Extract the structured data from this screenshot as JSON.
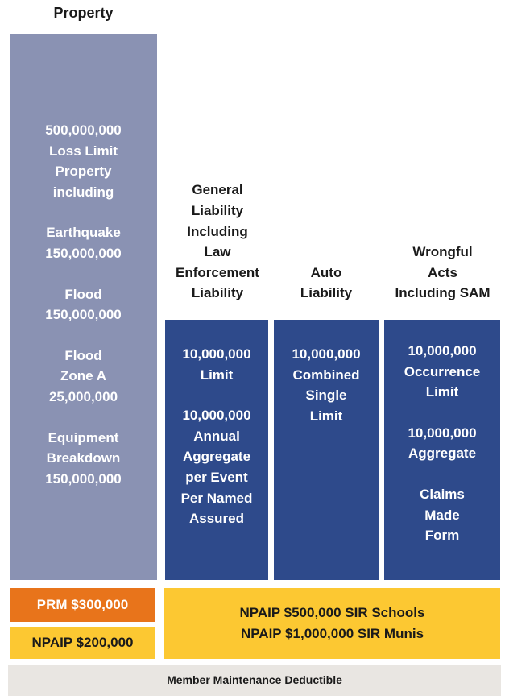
{
  "property": {
    "title": "Property",
    "blocks": [
      [
        "500,000,000",
        "Loss Limit",
        "Property",
        "including"
      ],
      [
        "Earthquake",
        "150,000,000"
      ],
      [
        "Flood",
        "150,000,000"
      ],
      [
        "Flood",
        "Zone A",
        "25,000,000"
      ],
      [
        "Equipment",
        "Breakdown",
        "150,000,000"
      ]
    ]
  },
  "columns": [
    {
      "header": [
        "General",
        "Liability",
        "Including",
        "Law",
        "Enforcement",
        "Liability"
      ],
      "blocks": [
        [
          "10,000,000",
          "Limit"
        ],
        [
          "10,000,000",
          "Annual",
          "Aggregate",
          "per Event",
          "Per Named",
          "Assured"
        ]
      ]
    },
    {
      "header": [
        "Auto",
        "Liability"
      ],
      "blocks": [
        [
          "10,000,000",
          "Combined",
          "Single",
          "Limit"
        ]
      ]
    },
    {
      "header": [
        "Wrongful",
        "Acts",
        "Including SAM"
      ],
      "blocks": [
        [
          "10,000,000",
          "Occurrence",
          "Limit"
        ],
        [
          "10,000,000",
          "Aggregate"
        ],
        [
          "Claims",
          "Made",
          "Form"
        ]
      ]
    }
  ],
  "retentions": {
    "prm": "PRM $300,000",
    "npaip": "NPAIP $200,000",
    "sir": [
      "NPAIP $500,000 SIR Schools",
      "NPAIP $1,000,000 SIR Munis"
    ]
  },
  "footer": "Member Maintenance Deductible"
}
